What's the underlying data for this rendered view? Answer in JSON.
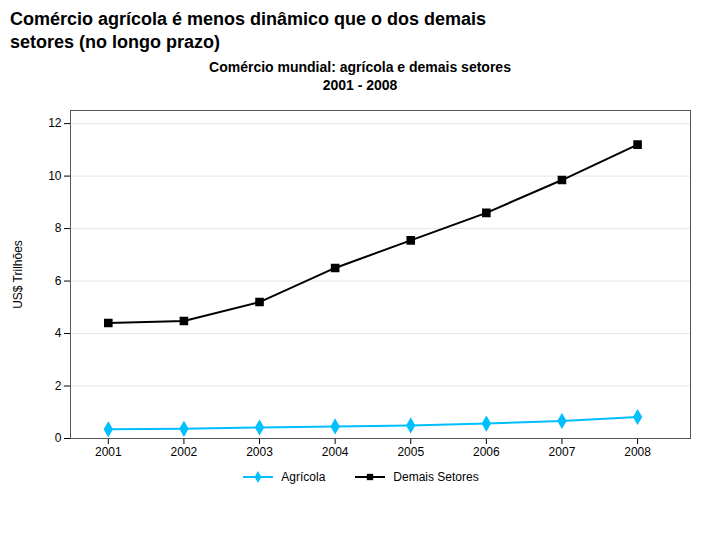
{
  "chart_data": {
    "type": "line",
    "title": "Comércio agrícola é menos dinâmico que o dos demais\nsetores (no longo prazo)",
    "subtitle": "Comércio mundial: agrícola e demais setores\n2001 - 2008",
    "y_label": "US$ Trilhões",
    "x": [
      2001,
      2002,
      2003,
      2004,
      2005,
      2006,
      2007,
      2008
    ],
    "series": [
      {
        "name": "Agrícola",
        "color": "#00BFFF",
        "marker": "diamond",
        "values": [
          0.35,
          0.37,
          0.42,
          0.46,
          0.5,
          0.57,
          0.67,
          0.82
        ]
      },
      {
        "name": "Demais Setores",
        "color": "#000000",
        "marker": "square",
        "values": [
          4.4,
          4.48,
          5.2,
          6.5,
          7.55,
          8.6,
          9.85,
          11.2
        ]
      }
    ],
    "xlim": [
      2000.5,
      2008.7
    ],
    "xticks": [
      2001,
      2002,
      2003,
      2004,
      2005,
      2006,
      2007,
      2008
    ],
    "ylim": [
      0,
      12.5
    ],
    "yticks": [
      0,
      2,
      4,
      6,
      8,
      10,
      12
    ],
    "grid": true,
    "legend": "bottom"
  }
}
